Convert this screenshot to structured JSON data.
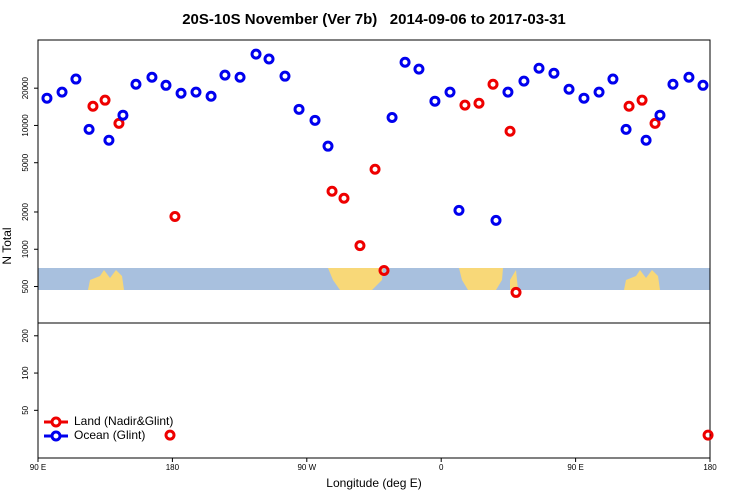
{
  "chart_data": {
    "type": "scatter",
    "title": "20S-10S November (Ver 7b)   2014-09-06 to 2017-03-31",
    "xlabel": "Longitude (deg E)",
    "ylabel": "N Total",
    "xlim": [
      90,
      540
    ],
    "xticks": [
      {
        "value": 90,
        "label": "90 E"
      },
      180,
      {
        "value": 270,
        "label": "90 W"
      },
      {
        "value": 360,
        "label": "0"
      },
      {
        "value": 450,
        "label": "90 E"
      },
      {
        "value": 540,
        "label": "180"
      }
    ],
    "ylim": [
      20.6,
      49000
    ],
    "yticks": [
      50,
      100,
      200,
      500,
      1000,
      2000,
      5000,
      10000,
      20000
    ],
    "log_y": true,
    "legend": "bottom-left",
    "series": [
      {
        "name": "Land (Nadir&Glint)",
        "color": "#ee0000",
        "x": [
          126.8,
          134.9,
          144.2,
          181.7,
          286.9,
          294.9,
          305.6,
          315.7,
          321.7,
          375.9,
          385.3,
          394.7,
          406.1,
          410.1,
          485.8,
          494.5,
          503.2,
          178.4,
          538.7
        ],
        "values": [
          14300,
          16000,
          10400,
          1840,
          2940,
          2580,
          1070,
          4430,
          673,
          14600,
          15100,
          21500,
          8970,
          448,
          14300,
          16000,
          10400,
          31.5,
          31.5
        ]
      },
      {
        "name": "Ocean (Glint)",
        "color": "#0000ee",
        "x": [
          96.0,
          106.1,
          115.4,
          124.2,
          137.5,
          146.9,
          155.6,
          166.3,
          175.7,
          185.8,
          195.8,
          205.9,
          215.2,
          225.3,
          236.0,
          244.7,
          255.4,
          264.8,
          275.5,
          284.2,
          327.1,
          335.8,
          345.1,
          355.8,
          365.9,
          371.9,
          396.7,
          404.7,
          415.4,
          425.5,
          435.5,
          445.6,
          455.6,
          465.7,
          475.0,
          483.8,
          497.2,
          506.5,
          515.2,
          525.9,
          535.3
        ],
        "values": [
          16600,
          18600,
          23700,
          9300,
          7600,
          12100,
          21500,
          24500,
          21100,
          18200,
          18600,
          17200,
          25500,
          24500,
          37700,
          34400,
          25000,
          13500,
          11000,
          6800,
          11600,
          32400,
          28500,
          15700,
          18600,
          2060,
          1710,
          18600,
          22800,
          29000,
          26400,
          19600,
          16600,
          18600,
          23700,
          9300,
          7600,
          12100,
          21500,
          24500,
          21100
        ]
      }
    ]
  }
}
